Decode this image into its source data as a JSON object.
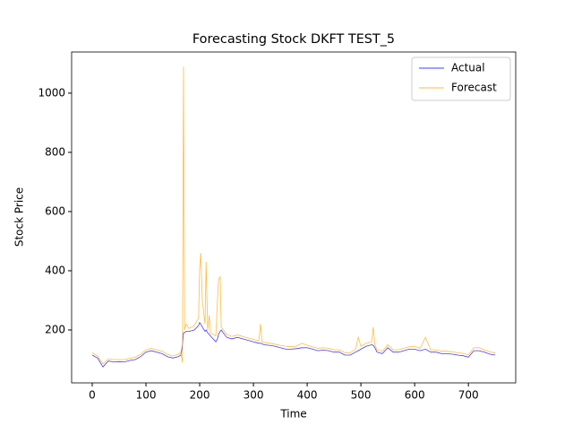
{
  "chart_data": {
    "type": "line",
    "title": "Forecasting Stock DKFT TEST_5",
    "xlabel": "Time",
    "ylabel": "Stock Price",
    "x": [
      0,
      10,
      20,
      30,
      40,
      50,
      60,
      70,
      80,
      90,
      100,
      110,
      120,
      130,
      140,
      150,
      160,
      165,
      168,
      170,
      172,
      175,
      180,
      190,
      198,
      200,
      202,
      205,
      210,
      212,
      215,
      218,
      220,
      230,
      233,
      235,
      238,
      240,
      250,
      260,
      270,
      280,
      290,
      300,
      310,
      313,
      316,
      320,
      330,
      340,
      350,
      360,
      370,
      380,
      390,
      400,
      410,
      420,
      430,
      440,
      450,
      460,
      470,
      480,
      490,
      495,
      500,
      510,
      520,
      523,
      526,
      530,
      540,
      550,
      560,
      570,
      580,
      590,
      600,
      610,
      620,
      630,
      640,
      650,
      660,
      670,
      680,
      690,
      700,
      710,
      720,
      730,
      740,
      750
    ],
    "series": [
      {
        "name": "Actual",
        "color": "#0000ff",
        "values": [
          115,
          105,
          75,
          95,
          92,
          93,
          92,
          97,
          100,
          110,
          125,
          130,
          125,
          120,
          110,
          105,
          110,
          115,
          150,
          190,
          192,
          195,
          195,
          200,
          215,
          225,
          220,
          210,
          195,
          200,
          190,
          185,
          180,
          160,
          170,
          185,
          195,
          200,
          175,
          170,
          175,
          170,
          165,
          160,
          155,
          155,
          153,
          150,
          148,
          145,
          140,
          135,
          135,
          137,
          140,
          140,
          135,
          130,
          132,
          130,
          125,
          125,
          115,
          115,
          125,
          130,
          135,
          145,
          150,
          148,
          140,
          125,
          120,
          140,
          125,
          125,
          130,
          135,
          135,
          130,
          135,
          125,
          125,
          120,
          120,
          118,
          115,
          113,
          108,
          130,
          130,
          125,
          118,
          115
        ]
      },
      {
        "name": "Forecast",
        "color": "#ffa500",
        "values": [
          123,
          112,
          85,
          103,
          100,
          100,
          100,
          104,
          108,
          118,
          133,
          138,
          133,
          128,
          118,
          112,
          118,
          125,
          90,
          1090,
          200,
          220,
          205,
          215,
          240,
          410,
          460,
          300,
          220,
          430,
          200,
          250,
          190,
          180,
          300,
          370,
          380,
          210,
          185,
          178,
          183,
          178,
          173,
          168,
          163,
          220,
          160,
          158,
          155,
          152,
          148,
          145,
          143,
          145,
          155,
          148,
          143,
          138,
          140,
          138,
          133,
          133,
          123,
          123,
          135,
          175,
          145,
          155,
          160,
          210,
          150,
          133,
          128,
          150,
          133,
          133,
          138,
          143,
          145,
          138,
          175,
          133,
          133,
          128,
          128,
          126,
          123,
          121,
          116,
          140,
          140,
          133,
          126,
          122
        ]
      }
    ],
    "xlim": [
      -38.3,
      788
    ],
    "ylim": [
      21.2,
      1139
    ],
    "xticks": [
      0,
      100,
      200,
      300,
      400,
      500,
      600,
      700
    ],
    "yticks": [
      200,
      400,
      600,
      800,
      1000
    ],
    "legend": "upper right"
  }
}
